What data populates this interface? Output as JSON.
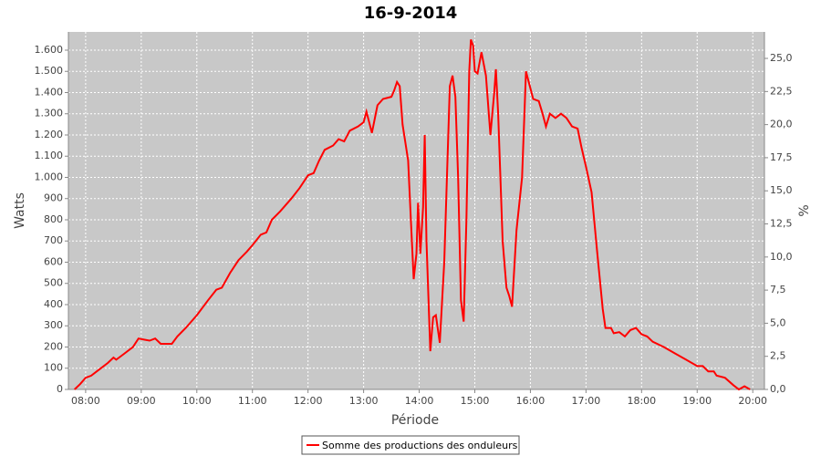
{
  "chart_data": {
    "type": "line",
    "title": "16-9-2014",
    "xlabel": "Période",
    "ylabel": "Watts",
    "y2label": "%",
    "legend": "bottom",
    "grid": true,
    "xlim": [
      7.69,
      20.21
    ],
    "ylim": [
      0,
      1686
    ],
    "y2lim": [
      0,
      27
    ],
    "xticks": [
      {
        "value": 8,
        "label": "08:00"
      },
      {
        "value": 9,
        "label": "09:00"
      },
      {
        "value": 10,
        "label": "10:00"
      },
      {
        "value": 11,
        "label": "11:00"
      },
      {
        "value": 12,
        "label": "12:00"
      },
      {
        "value": 13,
        "label": "13:00"
      },
      {
        "value": 14,
        "label": "14:00"
      },
      {
        "value": 15,
        "label": "15:00"
      },
      {
        "value": 16,
        "label": "16:00"
      },
      {
        "value": 17,
        "label": "17:00"
      },
      {
        "value": 18,
        "label": "18:00"
      },
      {
        "value": 19,
        "label": "19:00"
      },
      {
        "value": 20,
        "label": "20:00"
      }
    ],
    "yticks": [
      0,
      100,
      200,
      300,
      400,
      500,
      600,
      700,
      800,
      900,
      {
        "value": 1000,
        "label": "1.000"
      },
      {
        "value": 1100,
        "label": "1.100"
      },
      {
        "value": 1200,
        "label": "1.200"
      },
      {
        "value": 1300,
        "label": "1.300"
      },
      {
        "value": 1400,
        "label": "1.400"
      },
      {
        "value": 1500,
        "label": "1.500"
      },
      {
        "value": 1600,
        "label": "1.600"
      }
    ],
    "y2ticks": [
      {
        "value": 0,
        "label": "0,0"
      },
      {
        "value": 2.5,
        "label": "2,5"
      },
      {
        "value": 5,
        "label": "5,0"
      },
      {
        "value": 7.5,
        "label": "7,5"
      },
      {
        "value": 10,
        "label": "10,0"
      },
      {
        "value": 12.5,
        "label": "12,5"
      },
      {
        "value": 15,
        "label": "15,0"
      },
      {
        "value": 17.5,
        "label": "17,5"
      },
      {
        "value": 20,
        "label": "20,0"
      },
      {
        "value": 22.5,
        "label": "22,5"
      },
      {
        "value": 25,
        "label": "25,0"
      }
    ],
    "x": [
      7.8,
      7.9,
      8.0,
      8.1,
      8.2,
      8.3,
      8.4,
      8.5,
      8.55,
      8.7,
      8.85,
      8.95,
      9.05,
      9.15,
      9.25,
      9.35,
      9.55,
      9.65,
      9.8,
      10.0,
      10.2,
      10.35,
      10.45,
      10.6,
      10.75,
      10.9,
      11.0,
      11.15,
      11.25,
      11.35,
      11.5,
      11.7,
      11.85,
      12.0,
      12.1,
      12.2,
      12.3,
      12.45,
      12.55,
      12.65,
      12.75,
      12.9,
      13.0,
      13.05,
      13.15,
      13.25,
      13.35,
      13.5,
      13.55,
      13.6,
      13.65,
      13.7,
      13.8,
      13.85,
      13.9,
      13.95,
      13.98,
      14.02,
      14.07,
      14.1,
      14.13,
      14.2,
      14.25,
      14.3,
      14.37,
      14.45,
      14.55,
      14.6,
      14.65,
      14.7,
      14.75,
      14.8,
      14.85,
      14.9,
      14.93,
      14.97,
      15.0,
      15.05,
      15.12,
      15.2,
      15.28,
      15.35,
      15.38,
      15.42,
      15.5,
      15.57,
      15.62,
      15.67,
      15.75,
      15.85,
      15.92,
      15.97,
      16.05,
      16.15,
      16.22,
      16.28,
      16.35,
      16.45,
      16.55,
      16.65,
      16.75,
      16.85,
      16.92,
      17.0,
      17.1,
      17.2,
      17.3,
      17.35,
      17.45,
      17.5,
      17.6,
      17.7,
      17.8,
      17.9,
      18.0,
      18.1,
      18.2,
      18.4,
      18.6,
      18.8,
      19.0,
      19.1,
      19.2,
      19.3,
      19.35,
      19.5,
      19.65,
      19.75,
      19.85,
      19.95
    ],
    "series": [
      {
        "name": "Somme des productions des onduleurs",
        "color": "#ff0000",
        "values": [
          0,
          25,
          55,
          65,
          85,
          105,
          125,
          150,
          140,
          170,
          200,
          240,
          235,
          230,
          240,
          215,
          215,
          250,
          290,
          350,
          420,
          470,
          480,
          550,
          610,
          650,
          680,
          730,
          740,
          800,
          840,
          900,
          950,
          1010,
          1020,
          1080,
          1130,
          1150,
          1180,
          1170,
          1220,
          1240,
          1260,
          1310,
          1210,
          1340,
          1370,
          1380,
          1410,
          1450,
          1430,
          1250,
          1080,
          800,
          520,
          640,
          880,
          640,
          860,
          1200,
          700,
          180,
          340,
          350,
          220,
          600,
          1430,
          1480,
          1380,
          1000,
          420,
          320,
          800,
          1500,
          1650,
          1620,
          1500,
          1490,
          1590,
          1480,
          1200,
          1400,
          1510,
          1300,
          700,
          480,
          440,
          390,
          750,
          1000,
          1500,
          1450,
          1370,
          1360,
          1300,
          1240,
          1300,
          1280,
          1300,
          1280,
          1240,
          1230,
          1140,
          1050,
          930,
          650,
          380,
          290,
          290,
          265,
          270,
          250,
          280,
          290,
          260,
          250,
          225,
          200,
          170,
          140,
          110,
          110,
          85,
          85,
          65,
          55,
          20,
          0,
          15,
          0
        ]
      }
    ]
  }
}
